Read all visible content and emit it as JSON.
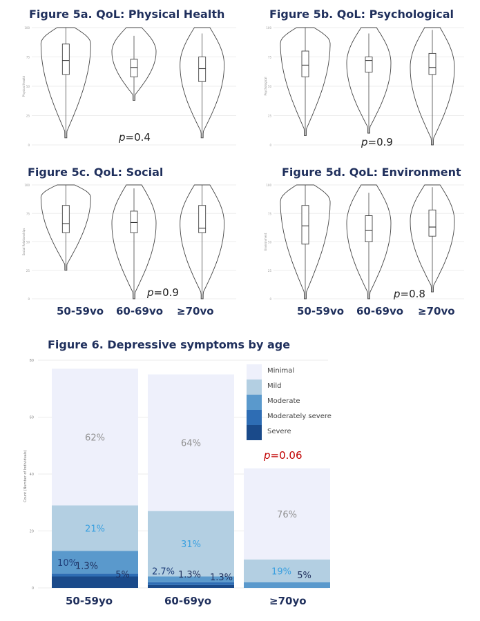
{
  "violin_figures": [
    {
      "title": "Figure 5a. QoL: Physical Health",
      "ylabel": "Physical Health",
      "p_prefix": "p",
      "p_value": "=0.4",
      "ylim": [
        0,
        100
      ],
      "y_ticks": [
        "0",
        "25",
        "50",
        "75",
        "100"
      ],
      "groups": [
        {
          "name": "50-59vo",
          "min": 6,
          "q1": 60,
          "median": 72,
          "q3": 86,
          "max": 100
        },
        {
          "name": "60-69vo",
          "min": 38,
          "q1": 58,
          "median": 66,
          "q3": 73,
          "max": 100
        },
        {
          "name": "≥70vo",
          "min": 6,
          "q1": 54,
          "median": 65,
          "q3": 75,
          "max": 100
        }
      ]
    },
    {
      "title": "Figure 5b. QoL: Psychological",
      "ylabel": "Psychological",
      "p_prefix": "p",
      "p_value": "=0.9",
      "ylim": [
        0,
        100
      ],
      "y_ticks": [
        "0",
        "25",
        "50",
        "75",
        "100"
      ],
      "groups": [
        {
          "name": "50-59vo",
          "min": 8,
          "q1": 58,
          "median": 68,
          "q3": 80,
          "max": 100
        },
        {
          "name": "60-69vo",
          "min": 10,
          "q1": 62,
          "median": 72,
          "q3": 75,
          "max": 100
        },
        {
          "name": "≥70vo",
          "min": 0,
          "q1": 60,
          "median": 66,
          "q3": 78,
          "max": 100
        }
      ]
    },
    {
      "title": "Figure 5c. QoL: Social",
      "ylabel": "Social Relationships",
      "p_prefix": "p",
      "p_value": "=0.9",
      "ylim": [
        0,
        100
      ],
      "y_ticks": [
        "0",
        "25",
        "50",
        "75",
        "100"
      ],
      "groups": [
        {
          "name": "50-59vo",
          "min": 25,
          "q1": 58,
          "median": 66,
          "q3": 82,
          "max": 100
        },
        {
          "name": "60-69vo",
          "min": 0,
          "q1": 58,
          "median": 67,
          "q3": 77,
          "max": 100
        },
        {
          "name": "≥70vo",
          "min": 0,
          "q1": 58,
          "median": 62,
          "q3": 82,
          "max": 100
        }
      ]
    },
    {
      "title": "Figure 5d. QoL: Environment",
      "ylabel": "Environment",
      "p_prefix": "p",
      "p_value": "=0.8",
      "ylim": [
        0,
        100
      ],
      "y_ticks": [
        "0",
        "25",
        "50",
        "75",
        "100"
      ],
      "groups": [
        {
          "name": "50-59vo",
          "min": 0,
          "q1": 48,
          "median": 64,
          "q3": 82,
          "max": 100
        },
        {
          "name": "60-69vo",
          "min": 0,
          "q1": 50,
          "median": 60,
          "q3": 73,
          "max": 100
        },
        {
          "name": "≥70vo",
          "min": 6,
          "q1": 55,
          "median": 63,
          "q3": 78,
          "max": 100
        }
      ]
    }
  ],
  "violin_axis_categories": [
    "50-59vo",
    "60-69vo",
    "≥70vo"
  ],
  "bar_figure": {
    "title": "Figure 6. Depressive symptoms by age",
    "ylabel": "Count (Number of Individuals)",
    "p_prefix": "p",
    "p_value": "=0.06",
    "p_color": "#c00000",
    "y_ticks": [
      "0",
      "20",
      "40",
      "60",
      "80"
    ],
    "x_labels": [
      "50-59yo",
      "60-69yo",
      "≥70yo"
    ]
  },
  "chart_data": [
    {
      "type": "bar",
      "stacked": true,
      "title": "Figure 6. Depressive symptoms by age",
      "xlabel": "",
      "ylabel": "Count (Number of Individuals)",
      "ylim": [
        0,
        80
      ],
      "categories": [
        "50-59yo",
        "60-69yo",
        "≥70yo"
      ],
      "series": [
        {
          "name": "Severe",
          "color": "#1a4a8a",
          "values": [
            4,
            1,
            0
          ]
        },
        {
          "name": "Moderately severe",
          "color": "#2e6db4",
          "values": [
            1,
            1,
            0
          ]
        },
        {
          "name": "Moderate",
          "color": "#5a99cc",
          "values": [
            8,
            2,
            2
          ]
        },
        {
          "name": "Mild",
          "color": "#b3cfe2",
          "values": [
            16,
            23,
            8
          ]
        },
        {
          "name": "Minimal",
          "color": "#eef0fb",
          "values": [
            48,
            48,
            32
          ]
        }
      ],
      "legend": {
        "placement": "top-right",
        "items": [
          "Minimal",
          "Mild",
          "Moderate",
          "Moderately severe",
          "Severe"
        ]
      },
      "data_labels": [
        {
          "text": "62%",
          "category": "50-59yo",
          "series": "Minimal",
          "color": "#909090"
        },
        {
          "text": "21%",
          "category": "50-59yo",
          "series": "Mild",
          "color": "#3aa0e0"
        },
        {
          "text": "10%",
          "category": "50-59yo",
          "series": "Moderate",
          "color": "#1f3f7a"
        },
        {
          "text": "1.3%",
          "category": "50-59yo",
          "series": "Moderately severe",
          "color": "#1f2f5c"
        },
        {
          "text": "5%",
          "category": "50-59yo",
          "series": "Severe",
          "color": "#1f2f5c"
        },
        {
          "text": "64%",
          "category": "60-69yo",
          "series": "Minimal",
          "color": "#909090"
        },
        {
          "text": "31%",
          "category": "60-69yo",
          "series": "Mild",
          "color": "#3aa0e0"
        },
        {
          "text": "2.7%",
          "category": "60-69yo",
          "series": "Moderate",
          "color": "#1f3f7a"
        },
        {
          "text": "1.3%",
          "category": "60-69yo",
          "series": "Moderately severe",
          "color": "#1f2f5c"
        },
        {
          "text": "1.3%",
          "category": "60-69yo",
          "series": "Severe",
          "color": "#1f2f5c"
        },
        {
          "text": "76%",
          "category": "≥70yo",
          "series": "Minimal",
          "color": "#909090"
        },
        {
          "text": "19%",
          "category": "≥70yo",
          "series": "Mild",
          "color": "#3aa0e0"
        },
        {
          "text": "5%",
          "category": "≥70yo",
          "series": "Moderate",
          "color": "#1f2f5c"
        }
      ]
    }
  ]
}
